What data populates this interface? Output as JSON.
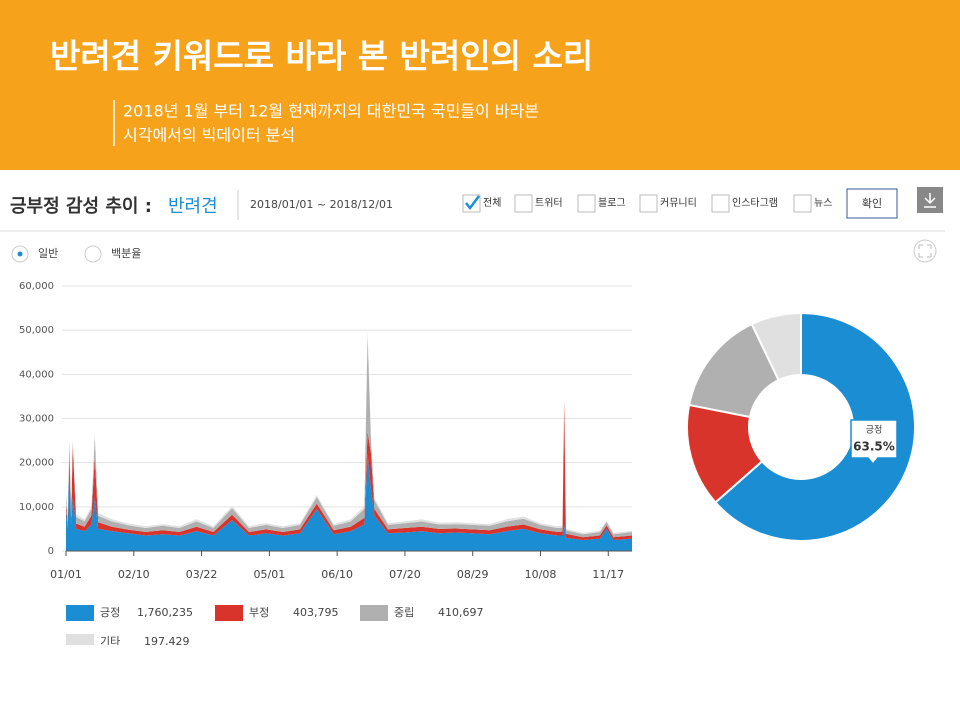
{
  "header": {
    "title": "반려견 키워드로 바라 본 반려인의 소리",
    "subtitle": [
      "2018년 1월 부터 12월 현재까지의 대한민국 국민들이 바라본",
      "시각에서의 빅데이터 분석"
    ]
  },
  "panel": {
    "title": "긍부정 감성 추이 :",
    "keyword": "반려견",
    "date_range": "2018/01/01 ~ 2018/12/01",
    "filters": [
      {
        "label": "전체",
        "checked": true
      },
      {
        "label": "트위터",
        "checked": false
      },
      {
        "label": "블로그",
        "checked": false
      },
      {
        "label": "커뮤니티",
        "checked": false
      },
      {
        "label": "인스타그램",
        "checked": false
      },
      {
        "label": "뉴스",
        "checked": false
      }
    ],
    "confirm": "확인",
    "modes": [
      {
        "label": "일반",
        "selected": true
      },
      {
        "label": "백분율",
        "selected": false
      }
    ]
  },
  "chart_data": [
    {
      "type": "area",
      "stacked": true,
      "x": [
        "01/01",
        "01/02",
        "01/03",
        "01/04",
        "01/05",
        "01/07",
        "01/12",
        "01/16",
        "01/18",
        "01/20",
        "01/28",
        "02/07",
        "02/17",
        "02/27",
        "03/09",
        "03/19",
        "03/29",
        "04/09",
        "04/19",
        "04/29",
        "05/09",
        "05/19",
        "05/29",
        "06/08",
        "06/18",
        "06/26",
        "06/28",
        "06/30",
        "07/02",
        "07/10",
        "07/20",
        "07/30",
        "08/09",
        "08/19",
        "08/29",
        "09/08",
        "09/18",
        "09/28",
        "10/08",
        "10/18",
        "10/21",
        "10/22",
        "10/23",
        "11/02",
        "11/12",
        "11/16",
        "11/20",
        "12/01"
      ],
      "xlim": [
        "01/01",
        "12/01"
      ],
      "xticks": [
        "01/01",
        "02/10",
        "03/22",
        "05/01",
        "06/10",
        "07/20",
        "08/29",
        "10/08",
        "11/17"
      ],
      "ylim": [
        0,
        60000
      ],
      "yticks": [
        0,
        {
          "value": 10000,
          "label": "10,000"
        },
        {
          "value": 20000,
          "label": "20,000"
        },
        {
          "value": 30000,
          "label": "30,000"
        },
        {
          "value": 40000,
          "label": "40,000"
        },
        {
          "value": 50000,
          "label": "50,000"
        },
        {
          "value": 60000,
          "label": "60,000"
        }
      ],
      "grid": true,
      "series": [
        {
          "name": "긍정",
          "color": "#1b8ed3",
          "total": 1760235,
          "total_label": "1,760,235",
          "values": [
            9000,
            5000,
            22000,
            6000,
            12000,
            5000,
            4500,
            6000,
            12000,
            5000,
            4500,
            4000,
            3500,
            3800,
            3500,
            4500,
            3500,
            7000,
            3500,
            4000,
            3500,
            4000,
            9500,
            3800,
            4500,
            6000,
            22000,
            14000,
            8000,
            4000,
            4200,
            4500,
            4000,
            4200,
            4000,
            3800,
            4500,
            5000,
            4000,
            3500,
            3500,
            6000,
            3000,
            2500,
            2800,
            5000,
            2500,
            2800
          ]
        },
        {
          "name": "부정",
          "color": "#d9342b",
          "total": 403795,
          "total_label": "403,795",
          "values": [
            1500,
            1000,
            1500,
            1200,
            12000,
            1200,
            1000,
            2000,
            9000,
            1500,
            1000,
            800,
            800,
            900,
            800,
            1000,
            800,
            1200,
            800,
            900,
            800,
            900,
            1200,
            900,
            1000,
            1500,
            5000,
            8000,
            1500,
            900,
            1000,
            1000,
            1000,
            900,
            900,
            900,
            1000,
            1000,
            900,
            800,
            900,
            28000,
            900,
            600,
            700,
            800,
            600,
            700
          ]
        },
        {
          "name": "중립",
          "color": "#b0b0b0",
          "total": 410697,
          "total_label": "410,697",
          "values": [
            2000,
            1500,
            1200,
            1500,
            800,
            1500,
            1200,
            1500,
            5000,
            1500,
            1200,
            1000,
            900,
            1000,
            900,
            1200,
            900,
            1500,
            900,
            1000,
            900,
            1000,
            1500,
            1000,
            1200,
            2000,
            22000,
            3000,
            2000,
            1000,
            1100,
            1200,
            1000,
            1000,
            1000,
            1000,
            1200,
            1300,
            1000,
            900,
            900,
            500,
            800,
            700,
            800,
            800,
            700,
            800
          ]
        },
        {
          "name": "기타",
          "color": "#e0e0e0",
          "total": 197429,
          "total_label": "197,429",
          "values": [
            800,
            600,
            500,
            600,
            400,
            600,
            500,
            600,
            1000,
            600,
            500,
            400,
            400,
            400,
            400,
            500,
            400,
            500,
            400,
            400,
            400,
            400,
            500,
            400,
            500,
            600,
            1000,
            800,
            600,
            400,
            400,
            500,
            400,
            400,
            400,
            400,
            500,
            500,
            400,
            400,
            400,
            300,
            300,
            300,
            300,
            300,
            300,
            300
          ]
        }
      ]
    },
    {
      "type": "pie",
      "donut": true,
      "categories": [
        "긍정",
        "부정",
        "중립",
        "기타"
      ],
      "values": [
        63.5,
        14.6,
        14.8,
        7.1
      ],
      "value_labels": [
        "63.5%",
        null,
        null,
        null
      ],
      "colors": [
        "#1b8ed3",
        "#d9342b",
        "#b0b0b0",
        "#e0e0e0"
      ]
    }
  ]
}
